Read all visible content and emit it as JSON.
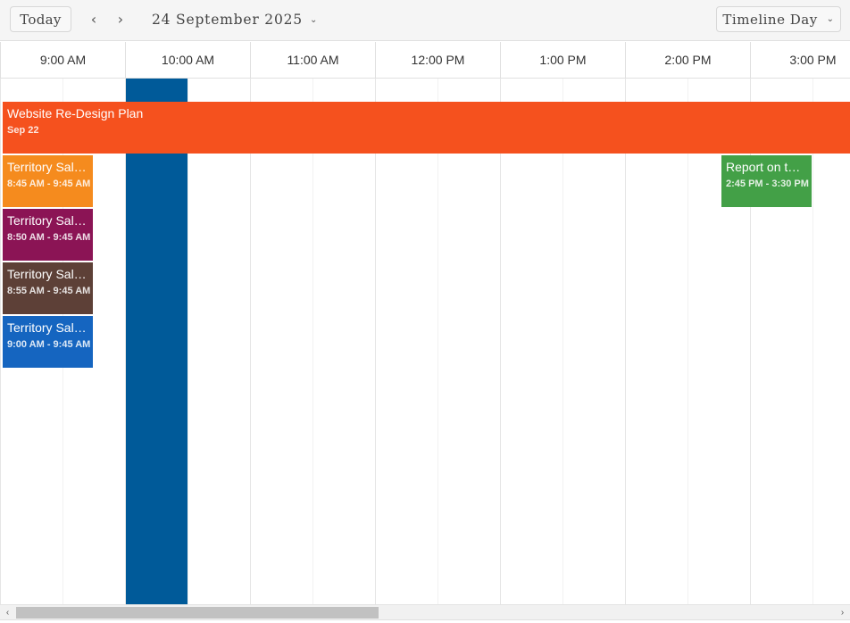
{
  "toolbar": {
    "today_label": "Today",
    "prev_icon": "‹",
    "next_icon": "›",
    "date_range": "24 September 2025",
    "date_chevron": "⌄",
    "view_label": "Timeline Day",
    "view_chevron": "⌄"
  },
  "timeline": {
    "hours": [
      "9:00 AM",
      "10:00 AM",
      "11:00 AM",
      "12:00 PM",
      "1:00 PM",
      "2:00 PM",
      "3:00 PM"
    ]
  },
  "events": [
    {
      "title": "Website Re-Design Plan",
      "time": "Sep 22",
      "color": "#f5511e"
    },
    {
      "title": "Territory Sal…",
      "time": "8:45 AM - 9:45 AM",
      "color": "#f58b1e"
    },
    {
      "title": "Territory Sal…",
      "time": "8:50 AM - 9:45 AM",
      "color": "#8b1455"
    },
    {
      "title": "Territory Sal…",
      "time": "8:55 AM - 9:45 AM",
      "color": "#5d4037"
    },
    {
      "title": "Territory Sal…",
      "time": "9:00 AM - 9:45 AM",
      "color": "#1565c0"
    },
    {
      "title": "Report on th…",
      "time": "2:45 PM - 3:30 PM",
      "color": "#43a047"
    }
  ],
  "colors": {
    "current_time_band": "#005a99"
  },
  "scrollbar": {
    "left_icon": "‹",
    "right_icon": "›"
  }
}
